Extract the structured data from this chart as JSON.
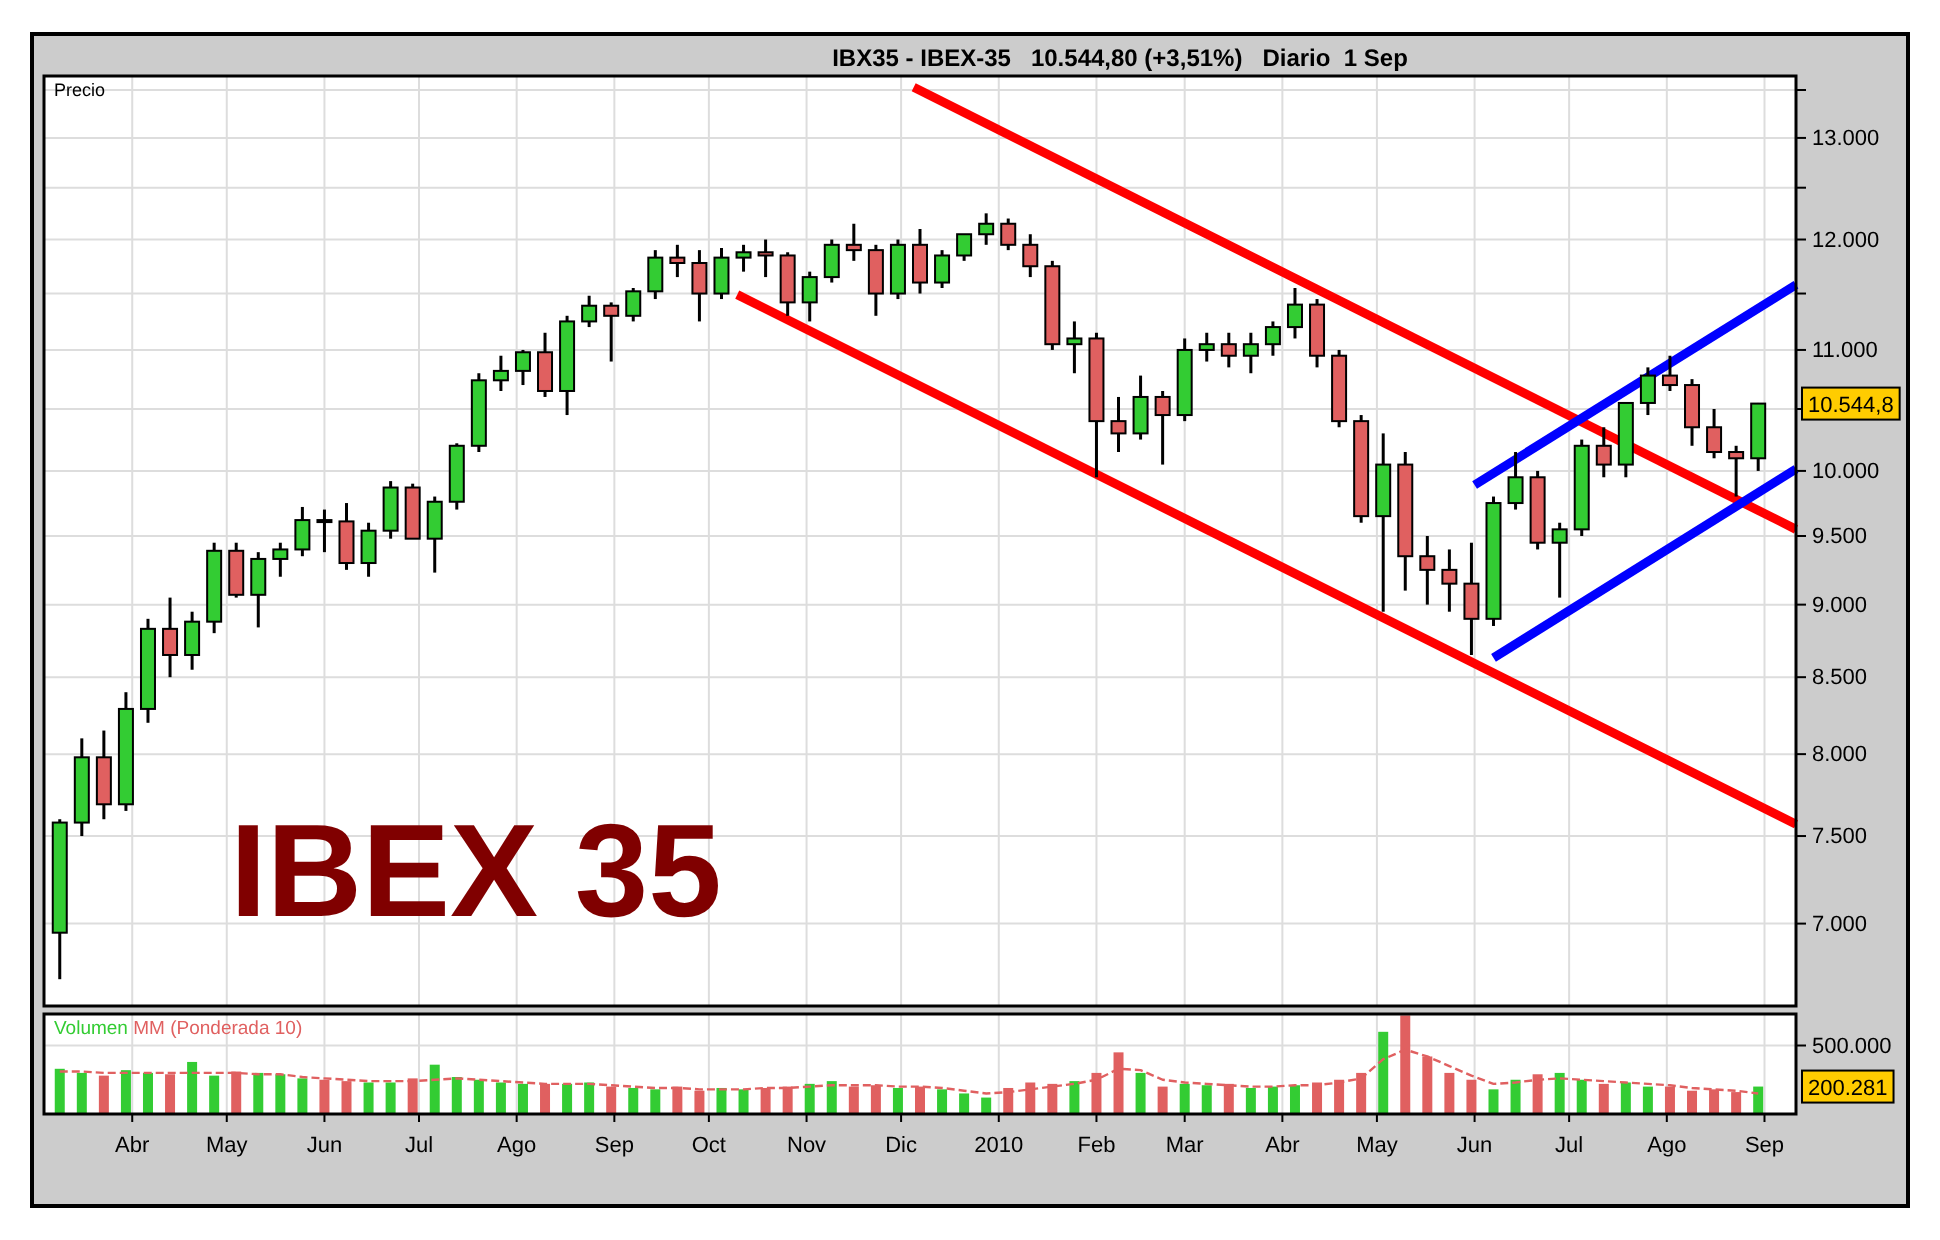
{
  "chart_data": [
    {
      "type": "candlestick",
      "title": "IBX35 - IBEX-35   10.544,80 (+3,51%)   Diario  1 Sep",
      "ylabel": "Precio",
      "log": true,
      "grid": true,
      "tick_labels": "y",
      "x": [
        "2009-03-09",
        "2009-03-16",
        "2009-03-23",
        "2009-03-30",
        "2009-04-06",
        "2009-04-13",
        "2009-04-20",
        "2009-04-27",
        "2009-05-04",
        "2009-05-11",
        "2009-05-18",
        "2009-05-25",
        "2009-06-01",
        "2009-06-08",
        "2009-06-15",
        "2009-06-22",
        "2009-06-29",
        "2009-07-06",
        "2009-07-13",
        "2009-07-20",
        "2009-07-27",
        "2009-08-03",
        "2009-08-10",
        "2009-08-17",
        "2009-08-24",
        "2009-08-31",
        "2009-09-07",
        "2009-09-14",
        "2009-09-21",
        "2009-09-28",
        "2009-10-05",
        "2009-10-12",
        "2009-10-19",
        "2009-10-26",
        "2009-11-02",
        "2009-11-09",
        "2009-11-16",
        "2009-11-23",
        "2009-11-30",
        "2009-12-07",
        "2009-12-14",
        "2009-12-21",
        "2009-12-28",
        "2010-01-04",
        "2010-01-11",
        "2010-01-18",
        "2010-01-25",
        "2010-02-01",
        "2010-02-08",
        "2010-02-15",
        "2010-02-22",
        "2010-03-01",
        "2010-03-08",
        "2010-03-15",
        "2010-03-22",
        "2010-03-29",
        "2010-04-05",
        "2010-04-12",
        "2010-04-19",
        "2010-04-26",
        "2010-05-03",
        "2010-05-10",
        "2010-05-17",
        "2010-05-24",
        "2010-05-31",
        "2010-06-07",
        "2010-06-14",
        "2010-06-21",
        "2010-06-28",
        "2010-07-05",
        "2010-07-12",
        "2010-07-19",
        "2010-07-26",
        "2010-08-02",
        "2010-08-09",
        "2010-08-16",
        "2010-08-23",
        "2010-08-30"
      ],
      "ohlc": [
        [
          6950,
          7600,
          6700,
          7580
        ],
        [
          7580,
          8100,
          7500,
          7980
        ],
        [
          7980,
          8150,
          7600,
          7690
        ],
        [
          7690,
          8400,
          7650,
          8290
        ],
        [
          8290,
          8900,
          8200,
          8830
        ],
        [
          8830,
          9050,
          8500,
          8650
        ],
        [
          8650,
          8950,
          8550,
          8880
        ],
        [
          8880,
          9450,
          8800,
          9390
        ],
        [
          9390,
          9450,
          9050,
          9070
        ],
        [
          9070,
          9380,
          8840,
          9330
        ],
        [
          9330,
          9450,
          9200,
          9400
        ],
        [
          9400,
          9720,
          9350,
          9620
        ],
        [
          9620,
          9700,
          9380,
          9610
        ],
        [
          9610,
          9750,
          9250,
          9300
        ],
        [
          9300,
          9600,
          9200,
          9540
        ],
        [
          9540,
          9920,
          9480,
          9870
        ],
        [
          9870,
          9900,
          9480,
          9480
        ],
        [
          9480,
          9800,
          9230,
          9760
        ],
        [
          9760,
          10220,
          9700,
          10200
        ],
        [
          10200,
          10800,
          10150,
          10740
        ],
        [
          10740,
          10950,
          10650,
          10820
        ],
        [
          10820,
          11000,
          10700,
          10980
        ],
        [
          10980,
          11150,
          10600,
          10650
        ],
        [
          10650,
          11300,
          10450,
          11250
        ],
        [
          11250,
          11480,
          11200,
          11390
        ],
        [
          11390,
          11420,
          10900,
          11300
        ],
        [
          11300,
          11550,
          11250,
          11520
        ],
        [
          11520,
          11900,
          11450,
          11830
        ],
        [
          11830,
          11950,
          11650,
          11780
        ],
        [
          11780,
          11900,
          11250,
          11500
        ],
        [
          11500,
          11920,
          11450,
          11830
        ],
        [
          11830,
          11950,
          11700,
          11880
        ],
        [
          11880,
          12000,
          11650,
          11850
        ],
        [
          11850,
          11880,
          11300,
          11420
        ],
        [
          11420,
          11700,
          11250,
          11650
        ],
        [
          11650,
          12000,
          11600,
          11950
        ],
        [
          11950,
          12150,
          11800,
          11900
        ],
        [
          11900,
          11950,
          11300,
          11500
        ],
        [
          11500,
          12000,
          11450,
          11950
        ],
        [
          11950,
          12100,
          11500,
          11600
        ],
        [
          11600,
          11900,
          11550,
          11850
        ],
        [
          11850,
          12050,
          11800,
          12050
        ],
        [
          12050,
          12250,
          11950,
          12150
        ],
        [
          12150,
          12200,
          11900,
          11950
        ],
        [
          11950,
          12050,
          11650,
          11750
        ],
        [
          11750,
          11800,
          11000,
          11050
        ],
        [
          11050,
          11250,
          10800,
          11100
        ],
        [
          11100,
          11150,
          9950,
          10400
        ],
        [
          10400,
          10600,
          10150,
          10300
        ],
        [
          10300,
          10780,
          10250,
          10600
        ],
        [
          10600,
          10650,
          10050,
          10450
        ],
        [
          10450,
          11100,
          10400,
          11000
        ],
        [
          11000,
          11150,
          10900,
          11050
        ],
        [
          11050,
          11150,
          10850,
          10950
        ],
        [
          10950,
          11150,
          10800,
          11050
        ],
        [
          11050,
          11250,
          10950,
          11200
        ],
        [
          11200,
          11550,
          11100,
          11400
        ],
        [
          11400,
          11450,
          10850,
          10950
        ],
        [
          10950,
          11000,
          10350,
          10400
        ],
        [
          10400,
          10450,
          9600,
          9650
        ],
        [
          9650,
          10300,
          8950,
          10050
        ],
        [
          10050,
          10150,
          9100,
          9350
        ],
        [
          9350,
          9500,
          9000,
          9250
        ],
        [
          9250,
          9400,
          8950,
          9150
        ],
        [
          9150,
          9450,
          8650,
          8900
        ],
        [
          8900,
          9800,
          8850,
          9750
        ],
        [
          9750,
          10150,
          9700,
          9950
        ],
        [
          9950,
          10000,
          9400,
          9450
        ],
        [
          9450,
          9600,
          9050,
          9550
        ],
        [
          9550,
          10250,
          9500,
          10200
        ],
        [
          10200,
          10350,
          9950,
          10050
        ],
        [
          10050,
          10550,
          9950,
          10550
        ],
        [
          10550,
          10850,
          10450,
          10780
        ],
        [
          10780,
          10950,
          10650,
          10700
        ],
        [
          10700,
          10750,
          10200,
          10350
        ],
        [
          10350,
          10500,
          10100,
          10150
        ],
        [
          10150,
          10200,
          9800,
          10100
        ],
        [
          10100,
          10550,
          10000,
          10544.8
        ]
      ],
      "colors": [
        "#33cc33",
        "#33cc33",
        "#e06060",
        "#33cc33",
        "#33cc33",
        "#e06060",
        "#33cc33",
        "#33cc33",
        "#e06060",
        "#33cc33",
        "#33cc33",
        "#33cc33",
        "#e06060",
        "#e06060",
        "#33cc33",
        "#33cc33",
        "#e06060",
        "#33cc33",
        "#33cc33",
        "#33cc33",
        "#33cc33",
        "#33cc33",
        "#e06060",
        "#33cc33",
        "#33cc33",
        "#e06060",
        "#33cc33",
        "#33cc33",
        "#e06060",
        "#e06060",
        "#33cc33",
        "#33cc33",
        "#e06060",
        "#e06060",
        "#33cc33",
        "#33cc33",
        "#e06060",
        "#e06060",
        "#33cc33",
        "#e06060",
        "#33cc33",
        "#33cc33",
        "#33cc33",
        "#e06060",
        "#e06060",
        "#e06060",
        "#33cc33",
        "#e06060",
        "#e06060",
        "#33cc33",
        "#e06060",
        "#33cc33",
        "#33cc33",
        "#e06060",
        "#33cc33",
        "#33cc33",
        "#33cc33",
        "#e06060",
        "#e06060",
        "#e06060",
        "#33cc33",
        "#e06060",
        "#e06060",
        "#e06060",
        "#e06060",
        "#33cc33",
        "#33cc33",
        "#e06060",
        "#33cc33",
        "#33cc33",
        "#e06060",
        "#33cc33",
        "#33cc33",
        "#e06060",
        "#e06060",
        "#e06060",
        "#e06060",
        "#33cc33"
      ],
      "series": [
        {
          "type": "line",
          "color": "#ff0000",
          "x": [
            "2009-12-05",
            "2010-09-11"
          ],
          "values": [
            13530,
            9550
          ]
        },
        {
          "type": "line",
          "color": "#ff0000",
          "x": [
            "2009-10-10",
            "2010-09-11"
          ],
          "values": [
            11490,
            7570
          ]
        },
        {
          "type": "line",
          "color": "#0000ff",
          "x": [
            "2010-06-01",
            "2010-09-11"
          ],
          "values": [
            9890,
            11580
          ]
        },
        {
          "type": "line",
          "color": "#0000ff",
          "x": [
            "2010-06-07",
            "2010-09-11"
          ],
          "values": [
            8630,
            10015
          ]
        }
      ],
      "xlim": [
        "2009-03-04",
        "2010-09-11"
      ],
      "xticks": [
        {
          "value": "2009-04-01",
          "label": null
        },
        {
          "value": "2009-05-01",
          "label": null
        },
        {
          "value": "2009-06-01",
          "label": null
        },
        {
          "value": "2009-07-01",
          "label": null
        },
        {
          "value": "2009-08-01",
          "label": null
        },
        {
          "value": "2009-09-01",
          "label": null
        },
        {
          "value": "2009-10-01",
          "label": null
        },
        {
          "value": "2009-11-01",
          "label": null
        },
        {
          "value": "2009-12-01",
          "label": null
        },
        {
          "value": "2010-01-01",
          "label": null
        },
        {
          "value": "2010-02-01",
          "label": null
        },
        {
          "value": "2010-03-01",
          "label": null
        },
        {
          "value": "2010-04-01",
          "label": null
        },
        {
          "value": "2010-05-01",
          "label": null
        },
        {
          "value": "2010-06-01",
          "label": null
        },
        {
          "value": "2010-07-01",
          "label": null
        },
        {
          "value": "2010-08-01",
          "label": null
        },
        {
          "value": "2010-09-01",
          "label": null
        }
      ],
      "ylim": [
        6560,
        13650
      ],
      "yticks": [
        {
          "value": 7000,
          "label": "7.000"
        },
        {
          "value": 7500,
          "label": "7.500"
        },
        {
          "value": 8000,
          "label": "8.000"
        },
        {
          "value": 8500,
          "label": "8.500"
        },
        {
          "value": 9000,
          "label": "9.000"
        },
        {
          "value": 9500,
          "label": "9.500"
        },
        {
          "value": 10000,
          "label": "10.000"
        },
        {
          "value": 10500,
          "label": null
        },
        {
          "value": 11000,
          "label": "11.000"
        },
        {
          "value": 11500,
          "label": null
        },
        {
          "value": 12000,
          "label": "12.000"
        },
        {
          "value": 12500,
          "label": null
        },
        {
          "value": 13000,
          "label": "13.000"
        },
        {
          "value": 13500,
          "label": null
        }
      ],
      "annotations": [
        "IBEX 35",
        "10.544,8"
      ]
    },
    {
      "type": "bar",
      "grid": true,
      "legend": "top left",
      "x": [
        "2009-03-09",
        "2009-03-16",
        "2009-03-23",
        "2009-03-30",
        "2009-04-06",
        "2009-04-13",
        "2009-04-20",
        "2009-04-27",
        "2009-05-04",
        "2009-05-11",
        "2009-05-18",
        "2009-05-25",
        "2009-06-01",
        "2009-06-08",
        "2009-06-15",
        "2009-06-22",
        "2009-06-29",
        "2009-07-06",
        "2009-07-13",
        "2009-07-20",
        "2009-07-27",
        "2009-08-03",
        "2009-08-10",
        "2009-08-17",
        "2009-08-24",
        "2009-08-31",
        "2009-09-07",
        "2009-09-14",
        "2009-09-21",
        "2009-09-28",
        "2009-10-05",
        "2009-10-12",
        "2009-10-19",
        "2009-10-26",
        "2009-11-02",
        "2009-11-09",
        "2009-11-16",
        "2009-11-23",
        "2009-11-30",
        "2009-12-07",
        "2009-12-14",
        "2009-12-21",
        "2009-12-28",
        "2010-01-04",
        "2010-01-11",
        "2010-01-18",
        "2010-01-25",
        "2010-02-01",
        "2010-02-08",
        "2010-02-15",
        "2010-02-22",
        "2010-03-01",
        "2010-03-08",
        "2010-03-15",
        "2010-03-22",
        "2010-03-29",
        "2010-04-05",
        "2010-04-12",
        "2010-04-19",
        "2010-04-26",
        "2010-05-03",
        "2010-05-10",
        "2010-05-17",
        "2010-05-24",
        "2010-05-31",
        "2010-06-07",
        "2010-06-14",
        "2010-06-21",
        "2010-06-28",
        "2010-07-05",
        "2010-07-12",
        "2010-07-19",
        "2010-07-26",
        "2010-08-02",
        "2010-08-09",
        "2010-08-16",
        "2010-08-23",
        "2010-08-30"
      ],
      "series": [
        {
          "name": "Volumen",
          "type": "bar",
          "color": "#33cc33",
          "colors": [
            "#33cc33",
            "#33cc33",
            "#e06060",
            "#33cc33",
            "#33cc33",
            "#e06060",
            "#33cc33",
            "#33cc33",
            "#e06060",
            "#33cc33",
            "#33cc33",
            "#33cc33",
            "#e06060",
            "#e06060",
            "#33cc33",
            "#33cc33",
            "#e06060",
            "#33cc33",
            "#33cc33",
            "#33cc33",
            "#33cc33",
            "#33cc33",
            "#e06060",
            "#33cc33",
            "#33cc33",
            "#e06060",
            "#33cc33",
            "#33cc33",
            "#e06060",
            "#e06060",
            "#33cc33",
            "#33cc33",
            "#e06060",
            "#e06060",
            "#33cc33",
            "#33cc33",
            "#e06060",
            "#e06060",
            "#33cc33",
            "#e06060",
            "#33cc33",
            "#33cc33",
            "#33cc33",
            "#e06060",
            "#e06060",
            "#e06060",
            "#33cc33",
            "#e06060",
            "#e06060",
            "#33cc33",
            "#e06060",
            "#33cc33",
            "#33cc33",
            "#e06060",
            "#33cc33",
            "#33cc33",
            "#33cc33",
            "#e06060",
            "#e06060",
            "#e06060",
            "#33cc33",
            "#e06060",
            "#e06060",
            "#e06060",
            "#e06060",
            "#33cc33",
            "#33cc33",
            "#e06060",
            "#33cc33",
            "#33cc33",
            "#e06060",
            "#33cc33",
            "#33cc33",
            "#e06060",
            "#e06060",
            "#e06060",
            "#e06060",
            "#33cc33"
          ],
          "values": [
            330000,
            300000,
            280000,
            320000,
            300000,
            290000,
            380000,
            280000,
            310000,
            300000,
            290000,
            260000,
            250000,
            240000,
            230000,
            230000,
            260000,
            360000,
            270000,
            250000,
            230000,
            220000,
            220000,
            220000,
            230000,
            200000,
            190000,
            180000,
            200000,
            170000,
            190000,
            180000,
            190000,
            200000,
            220000,
            240000,
            200000,
            210000,
            190000,
            200000,
            180000,
            150000,
            120000,
            190000,
            230000,
            220000,
            240000,
            300000,
            450000,
            300000,
            200000,
            220000,
            210000,
            220000,
            190000,
            200000,
            210000,
            230000,
            250000,
            300000,
            600000,
            720000,
            420000,
            300000,
            250000,
            180000,
            250000,
            290000,
            300000,
            250000,
            220000,
            230000,
            200000,
            200000,
            170000,
            180000,
            160000,
            200281
          ]
        },
        {
          "name": "MM (Ponderada 10)",
          "type": "line",
          "color": "#e06060",
          "line_style": "dashed",
          "values": [
            310000,
            310000,
            300000,
            300000,
            300000,
            300000,
            300000,
            300000,
            300000,
            290000,
            290000,
            270000,
            260000,
            250000,
            240000,
            240000,
            240000,
            250000,
            260000,
            250000,
            240000,
            230000,
            220000,
            220000,
            220000,
            210000,
            200000,
            190000,
            190000,
            180000,
            180000,
            180000,
            190000,
            190000,
            200000,
            210000,
            210000,
            210000,
            200000,
            200000,
            190000,
            170000,
            150000,
            160000,
            180000,
            200000,
            220000,
            250000,
            330000,
            320000,
            250000,
            230000,
            220000,
            210000,
            200000,
            200000,
            210000,
            210000,
            230000,
            260000,
            400000,
            470000,
            420000,
            350000,
            280000,
            220000,
            230000,
            250000,
            260000,
            250000,
            240000,
            230000,
            220000,
            210000,
            190000,
            180000,
            170000,
            150000
          ]
        }
      ],
      "xlim": [
        "2009-03-04",
        "2010-09-11"
      ],
      "xticks": [
        {
          "value": "2009-04-01",
          "label": "Abr"
        },
        {
          "value": "2009-05-01",
          "label": "May"
        },
        {
          "value": "2009-06-01",
          "label": "Jun"
        },
        {
          "value": "2009-07-01",
          "label": "Jul"
        },
        {
          "value": "2009-08-01",
          "label": "Ago"
        },
        {
          "value": "2009-09-01",
          "label": "Sep"
        },
        {
          "value": "2009-10-01",
          "label": "Oct"
        },
        {
          "value": "2009-11-01",
          "label": "Nov"
        },
        {
          "value": "2009-12-01",
          "label": "Dic"
        },
        {
          "value": "2010-01-01",
          "label": "2010"
        },
        {
          "value": "2010-02-01",
          "label": "Feb"
        },
        {
          "value": "2010-03-01",
          "label": "Mar"
        },
        {
          "value": "2010-04-01",
          "label": "Abr"
        },
        {
          "value": "2010-05-01",
          "label": "May"
        },
        {
          "value": "2010-06-01",
          "label": "Jun"
        },
        {
          "value": "2010-07-01",
          "label": "Jul"
        },
        {
          "value": "2010-08-01",
          "label": "Ago"
        },
        {
          "value": "2010-09-01",
          "label": "Sep"
        }
      ],
      "yticks": [
        {
          "value": 500000,
          "label": "500.000"
        }
      ],
      "ylim": [
        0,
        730000
      ],
      "annotations": [
        "200.281"
      ]
    }
  ]
}
